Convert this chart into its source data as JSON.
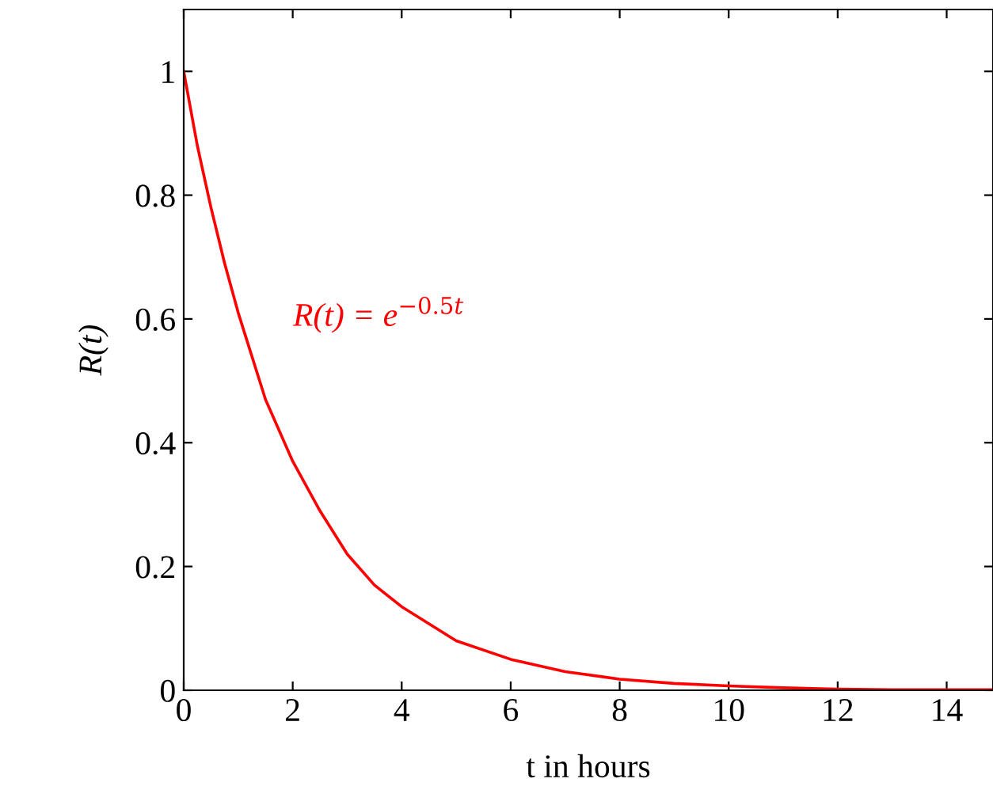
{
  "chart_data": {
    "type": "line",
    "xlabel": "t in hours",
    "ylabel": "R(t)",
    "x": [
      0,
      0.25,
      0.5,
      0.75,
      1,
      1.5,
      2,
      2.5,
      3,
      3.5,
      4,
      5,
      6,
      7,
      8,
      9,
      10,
      11,
      12,
      13,
      14,
      14.85
    ],
    "series": [
      {
        "color": "#ff0000",
        "values": [
          1,
          0.88,
          0.78,
          0.69,
          0.61,
          0.47,
          0.37,
          0.29,
          0.22,
          0.17,
          0.135,
          0.08,
          0.05,
          0.03,
          0.018,
          0.011,
          0.007,
          0.004,
          0.002,
          0.001,
          0.001,
          0.001
        ]
      }
    ],
    "xlim": [
      0,
      14.85
    ],
    "ylim": [
      0,
      1.1
    ],
    "xticks": [
      0,
      2,
      4,
      6,
      8,
      10,
      12,
      14
    ],
    "yticks": [
      0,
      0.2,
      0.4,
      0.6,
      0.8,
      1
    ],
    "annotations": [
      "R(t) = e$^{−0.5t}$"
    ],
    "grid": false,
    "legend": false,
    "marker": "none",
    "line_style": "solid"
  }
}
